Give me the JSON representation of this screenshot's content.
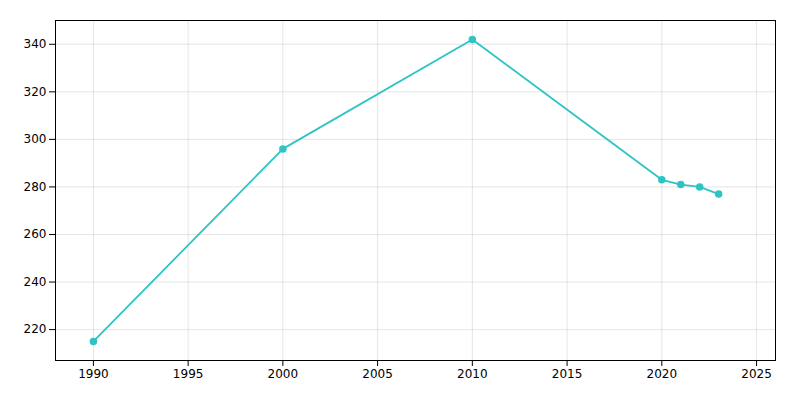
{
  "chart_data": {
    "type": "line",
    "x": [
      1990,
      2000,
      2010,
      2020,
      2021,
      2022,
      2023
    ],
    "values": [
      215,
      296,
      342,
      283,
      281,
      280,
      277
    ],
    "color": "#2EC4C4",
    "marker": "circle",
    "xlim": [
      1988,
      2026
    ],
    "ylim": [
      207,
      350
    ],
    "xticks": [
      1990,
      1995,
      2000,
      2005,
      2010,
      2015,
      2020,
      2025
    ],
    "yticks": [
      220,
      240,
      260,
      280,
      300,
      320,
      340
    ],
    "grid": true
  }
}
